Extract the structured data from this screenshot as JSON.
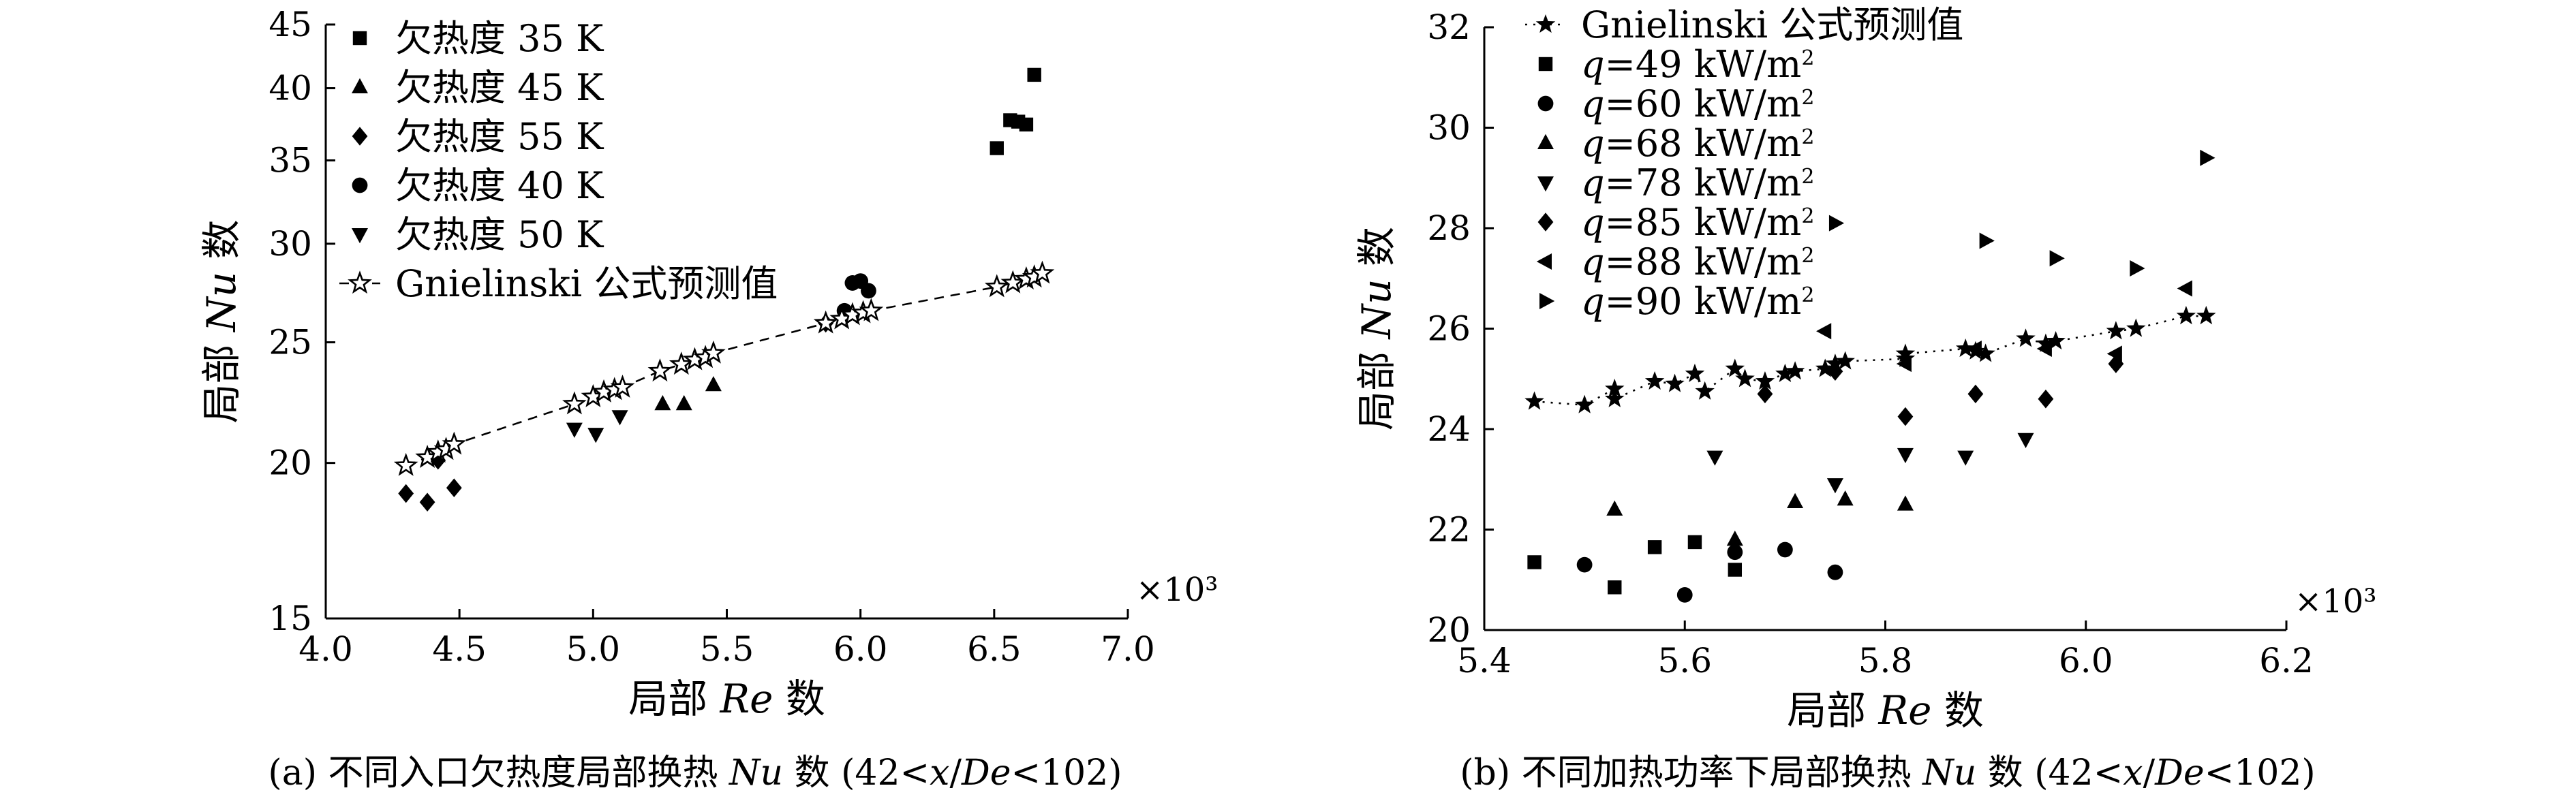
{
  "chart_data": [
    {
      "type": "scatter",
      "caption": "(a) 不同入口欠热度局部换热 Nu 数 (42<x/De<102)",
      "xlabel": "局部 Re 数",
      "ylabel": "局部 Nu 数",
      "x_multiplier": "×10³",
      "y_scale": "log",
      "xlim": [
        4.0,
        7.0
      ],
      "ylim": [
        15,
        45
      ],
      "x_ticks": [
        "4.0",
        "4.5",
        "5.0",
        "5.5",
        "6.0",
        "6.5",
        "7.0"
      ],
      "y_ticks": [
        "15",
        "20",
        "25",
        "30",
        "35",
        "40",
        "45"
      ],
      "legend_position": "top-left",
      "series": [
        {
          "name": "欠热度 35 K",
          "marker": "square",
          "points": [
            [
              6.51,
              35.8
            ],
            [
              6.56,
              37.7
            ],
            [
              6.59,
              37.6
            ],
            [
              6.62,
              37.4
            ],
            [
              6.65,
              41.0
            ]
          ]
        },
        {
          "name": "欠热度 45 K",
          "marker": "triangle-up",
          "points": [
            [
              5.26,
              22.3
            ],
            [
              5.34,
              22.3
            ],
            [
              5.45,
              23.1
            ]
          ]
        },
        {
          "name": "欠热度 55 K",
          "marker": "diamond",
          "points": [
            [
              4.3,
              18.9
            ],
            [
              4.38,
              18.6
            ],
            [
              4.42,
              20.1
            ],
            [
              4.48,
              19.1
            ],
            [
              5.87,
              25.9
            ]
          ]
        },
        {
          "name": "欠热度 40 K",
          "marker": "circle",
          "points": [
            [
              5.94,
              26.5
            ],
            [
              5.97,
              27.9
            ],
            [
              6.0,
              28.0
            ],
            [
              6.03,
              27.5
            ]
          ]
        },
        {
          "name": "欠热度 50 K",
          "marker": "triangle-down",
          "points": [
            [
              4.93,
              21.3
            ],
            [
              5.01,
              21.1
            ],
            [
              5.1,
              21.8
            ]
          ]
        },
        {
          "name": "Gnielinski 公式预测值",
          "marker": "star-open",
          "line": "dashed",
          "points": [
            [
              4.3,
              19.9
            ],
            [
              4.38,
              20.2
            ],
            [
              4.42,
              20.4
            ],
            [
              4.45,
              20.5
            ],
            [
              4.48,
              20.7
            ],
            [
              4.93,
              22.3
            ],
            [
              5.0,
              22.6
            ],
            [
              5.04,
              22.8
            ],
            [
              5.08,
              22.9
            ],
            [
              5.11,
              23.0
            ],
            [
              5.25,
              23.7
            ],
            [
              5.33,
              24.0
            ],
            [
              5.38,
              24.2
            ],
            [
              5.42,
              24.3
            ],
            [
              5.45,
              24.5
            ],
            [
              5.87,
              25.9
            ],
            [
              5.93,
              26.1
            ],
            [
              5.97,
              26.3
            ],
            [
              6.01,
              26.4
            ],
            [
              6.04,
              26.5
            ],
            [
              6.51,
              27.7
            ],
            [
              6.57,
              27.9
            ],
            [
              6.62,
              28.1
            ],
            [
              6.65,
              28.2
            ],
            [
              6.68,
              28.4
            ]
          ]
        }
      ]
    },
    {
      "type": "scatter",
      "caption": "(b) 不同加热功率下局部换热 Nu 数 (42<x/De<102)",
      "xlabel": "局部 Re 数",
      "ylabel": "局部 Nu 数",
      "x_multiplier": "×10³",
      "y_scale": "linear",
      "xlim": [
        5.4,
        6.2
      ],
      "ylim": [
        20,
        32
      ],
      "x_ticks": [
        "5.4",
        "5.6",
        "5.8",
        "6.0",
        "6.2"
      ],
      "y_ticks": [
        "20",
        "22",
        "24",
        "26",
        "28",
        "30",
        "32"
      ],
      "legend_position": "top-left",
      "series": [
        {
          "name": "Gnielinski 公式预测值",
          "marker": "star-filled",
          "line": "dotted",
          "points": [
            [
              5.45,
              24.55
            ],
            [
              5.5,
              24.48
            ],
            [
              5.53,
              24.8
            ],
            [
              5.53,
              24.6
            ],
            [
              5.57,
              24.95
            ],
            [
              5.59,
              24.9
            ],
            [
              5.61,
              25.1
            ],
            [
              5.62,
              24.75
            ],
            [
              5.65,
              25.2
            ],
            [
              5.66,
              25.0
            ],
            [
              5.68,
              24.95
            ],
            [
              5.7,
              25.1
            ],
            [
              5.71,
              25.15
            ],
            [
              5.74,
              25.2
            ],
            [
              5.75,
              25.3
            ],
            [
              5.76,
              25.35
            ],
            [
              5.82,
              25.4
            ],
            [
              5.82,
              25.5
            ],
            [
              5.88,
              25.6
            ],
            [
              5.89,
              25.55
            ],
            [
              5.9,
              25.5
            ],
            [
              5.94,
              25.8
            ],
            [
              5.96,
              25.7
            ],
            [
              5.97,
              25.75
            ],
            [
              6.03,
              25.95
            ],
            [
              6.05,
              26.0
            ],
            [
              6.1,
              26.25
            ],
            [
              6.12,
              26.25
            ]
          ]
        },
        {
          "name": "q=49 kW/m²",
          "marker": "square",
          "points": [
            [
              5.45,
              21.35
            ],
            [
              5.53,
              20.85
            ],
            [
              5.57,
              21.65
            ],
            [
              5.61,
              21.75
            ],
            [
              5.65,
              21.2
            ]
          ]
        },
        {
          "name": "q=60 kW/m²",
          "marker": "circle",
          "points": [
            [
              5.5,
              21.3
            ],
            [
              5.6,
              20.7
            ],
            [
              5.65,
              21.55
            ],
            [
              5.7,
              21.6
            ],
            [
              5.75,
              21.15
            ]
          ]
        },
        {
          "name": "q=68 kW/m²",
          "marker": "triangle-up",
          "points": [
            [
              5.53,
              22.4
            ],
            [
              5.65,
              21.8
            ],
            [
              5.71,
              22.55
            ],
            [
              5.76,
              22.6
            ],
            [
              5.82,
              22.5
            ]
          ]
        },
        {
          "name": "q=78 kW/m²",
          "marker": "triangle-down",
          "points": [
            [
              5.63,
              23.45
            ],
            [
              5.75,
              22.9
            ],
            [
              5.82,
              23.5
            ],
            [
              5.88,
              23.45
            ],
            [
              5.94,
              23.8
            ]
          ]
        },
        {
          "name": "q=85 kW/m²",
          "marker": "diamond",
          "points": [
            [
              5.68,
              24.7
            ],
            [
              5.75,
              25.15
            ],
            [
              5.82,
              24.25
            ],
            [
              5.89,
              24.7
            ],
            [
              5.96,
              24.6
            ],
            [
              6.03,
              25.3
            ]
          ]
        },
        {
          "name": "q=88 kW/m²",
          "marker": "triangle-left",
          "points": [
            [
              5.74,
              25.95
            ],
            [
              5.82,
              25.3
            ],
            [
              5.89,
              25.6
            ],
            [
              5.96,
              25.6
            ],
            [
              6.03,
              25.5
            ],
            [
              6.1,
              26.8
            ]
          ]
        },
        {
          "name": "q=90 kW/m²",
          "marker": "triangle-right",
          "points": [
            [
              5.75,
              28.1
            ],
            [
              5.9,
              27.75
            ],
            [
              5.97,
              27.4
            ],
            [
              6.05,
              27.2
            ],
            [
              6.12,
              29.4
            ]
          ]
        }
      ]
    }
  ]
}
